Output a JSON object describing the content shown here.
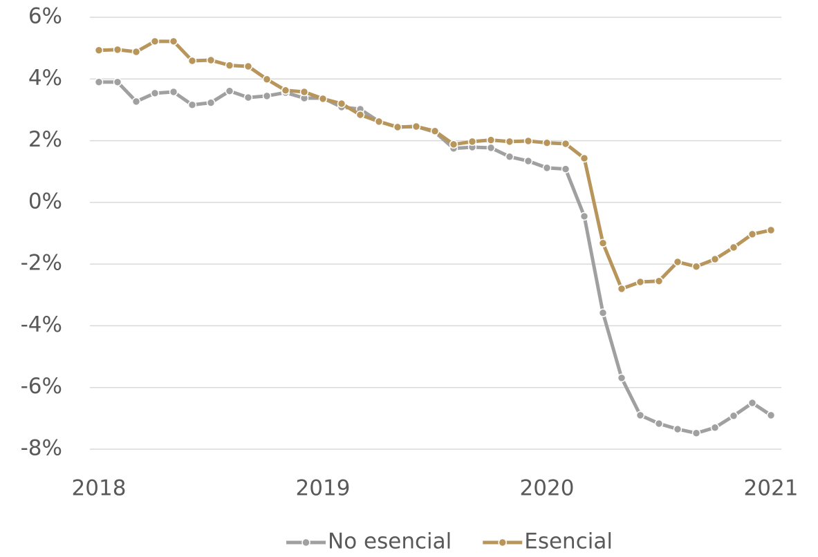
{
  "chart_data": {
    "type": "line",
    "categories": [
      "2018",
      null,
      null,
      null,
      null,
      null,
      null,
      null,
      null,
      null,
      null,
      null,
      "2019",
      null,
      null,
      null,
      null,
      null,
      null,
      null,
      null,
      null,
      null,
      null,
      "2020",
      null,
      null,
      null,
      null,
      null,
      null,
      null,
      null,
      null,
      null,
      null,
      "2021"
    ],
    "series": [
      {
        "name": "No esencial",
        "color": "#a0a0a0",
        "values": [
          3.9,
          3.9,
          3.27,
          3.54,
          3.58,
          3.16,
          3.23,
          3.61,
          3.4,
          3.45,
          3.56,
          3.38,
          3.38,
          3.09,
          3.02,
          2.62,
          2.44,
          2.46,
          2.28,
          1.75,
          1.79,
          1.77,
          1.48,
          1.34,
          1.12,
          1.08,
          -0.45,
          -3.58,
          -5.69,
          -6.9,
          -7.17,
          -7.35,
          -7.48,
          -7.3,
          -6.92,
          -6.5,
          -6.9
        ]
      },
      {
        "name": "Esencial",
        "color": "#b8955a",
        "values": [
          4.93,
          4.95,
          4.88,
          5.22,
          5.22,
          4.59,
          4.61,
          4.44,
          4.41,
          3.99,
          3.63,
          3.58,
          3.36,
          3.2,
          2.84,
          2.62,
          2.44,
          2.46,
          2.31,
          1.88,
          1.97,
          2.02,
          1.97,
          1.99,
          1.93,
          1.9,
          1.43,
          -1.32,
          -2.8,
          -2.58,
          -2.55,
          -1.93,
          -2.08,
          -1.84,
          -1.46,
          -1.03,
          -0.9
        ]
      }
    ],
    "ylim": [
      -8,
      6
    ],
    "yticks": [
      {
        "value": -8,
        "label": "-8%"
      },
      {
        "value": -6,
        "label": "-6%"
      },
      {
        "value": -4,
        "label": "-4%"
      },
      {
        "value": -2,
        "label": "-2%"
      },
      {
        "value": 0,
        "label": "0%"
      },
      {
        "value": 2,
        "label": "2%"
      },
      {
        "value": 4,
        "label": "4%"
      },
      {
        "value": 6,
        "label": "6%"
      }
    ],
    "grid": true,
    "legend": "bottom"
  }
}
